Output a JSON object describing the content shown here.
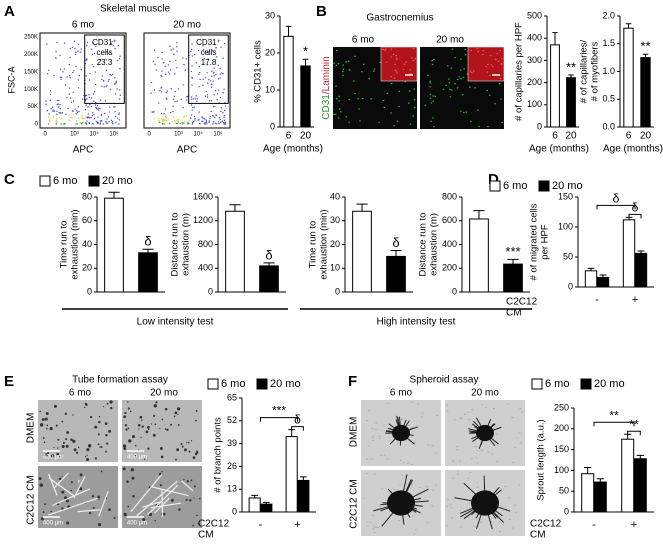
{
  "panels": {
    "A": {
      "letter": "A",
      "title": "Skeletal muscle",
      "ylabel": "FSC-A",
      "xlabel": "APC",
      "yticks": [
        "250K",
        "200K",
        "150K",
        "100K",
        "50K",
        "0"
      ],
      "xticks": [
        "0",
        "10³",
        "10⁴",
        "10⁵"
      ],
      "plots": [
        {
          "label": "6 mo",
          "gate": [
            "CD31⁺",
            "cells",
            "23.3"
          ]
        },
        {
          "label": "20 mo",
          "gate": [
            "CD31⁺",
            "cells",
            "17.8"
          ]
        }
      ]
    },
    "B": {
      "letter": "B",
      "title": "Gastrocnemius",
      "images": [
        "6 mo",
        "20 mo"
      ],
      "stain": [
        "CD31",
        "/Laminin"
      ]
    },
    "C": {
      "letter": "C",
      "legend": [
        "6 mo",
        "20 mo"
      ],
      "groups": [
        "Low intensity test",
        "High intensity test"
      ]
    },
    "D": {
      "letter": "D"
    },
    "E": {
      "letter": "E",
      "title": "Tube formation assay",
      "columns": [
        "6 mo",
        "20 mo"
      ],
      "rows": [
        "DMEM",
        "C2C12 CM"
      ],
      "scale": "400 μm"
    },
    "F": {
      "letter": "F",
      "title": "Spheroid assay",
      "columns": [
        "6 mo",
        "20 mo"
      ],
      "rows": [
        "DMEM",
        "C2C12 CM"
      ]
    }
  },
  "chart_data": [
    {
      "type": "bar",
      "ylabel": [
        "% CD31+ cells"
      ],
      "xlabel": "Age (months)",
      "categories": [
        "6",
        "20"
      ],
      "values": [
        24.5,
        16.5
      ],
      "errors": [
        2.7,
        1.8
      ],
      "colors": [
        "#ffffff",
        "#000000"
      ],
      "ylim": [
        0,
        30
      ],
      "yticks": [
        0,
        10,
        20,
        30
      ],
      "annotations": [
        "*"
      ]
    },
    {
      "type": "bar",
      "ylabel": [
        "# of capillaries per HPF"
      ],
      "xlabel": "Age (months)",
      "categories": [
        "6",
        "20"
      ],
      "values": [
        370,
        222
      ],
      "errors": [
        55,
        12
      ],
      "colors": [
        "#ffffff",
        "#000000"
      ],
      "ylim": [
        0,
        500
      ],
      "yticks": [
        0,
        100,
        200,
        300,
        400,
        500
      ],
      "annotations": [
        "**"
      ]
    },
    {
      "type": "bar",
      "ylabel": [
        "# of capillaries/",
        "# of myofibers"
      ],
      "xlabel": "Age (months)",
      "categories": [
        "6",
        "20"
      ],
      "values": [
        1.78,
        1.25
      ],
      "errors": [
        0.08,
        0.06
      ],
      "colors": [
        "#ffffff",
        "#000000"
      ],
      "ylim": [
        0,
        2
      ],
      "yticks": [
        {
          "value": 0,
          "label": "0.0"
        },
        {
          "value": 0.5,
          "label": "0.5"
        },
        {
          "value": 1,
          "label": "1.0"
        },
        {
          "value": 1.5,
          "label": "1.5"
        },
        {
          "value": 2,
          "label": "2.0"
        }
      ],
      "annotations": [
        "**"
      ]
    },
    {
      "type": "bar",
      "ylabel": [
        "Time run to",
        "exhaustion (min)"
      ],
      "values": [
        79,
        33
      ],
      "errors": [
        5,
        3
      ],
      "colors": [
        "#ffffff",
        "#000000"
      ],
      "ylim": [
        0,
        80
      ],
      "yticks": [
        0,
        20,
        40,
        60,
        80
      ],
      "annotations": [
        "δ"
      ]
    },
    {
      "type": "bar",
      "ylabel": [
        "Distance run to",
        "exhaustion (m)"
      ],
      "values": [
        1360,
        440
      ],
      "errors": [
        110,
        50
      ],
      "colors": [
        "#ffffff",
        "#000000"
      ],
      "ylim": [
        0,
        1600
      ],
      "yticks": [
        0,
        400,
        800,
        1200,
        1600
      ],
      "annotations": [
        "δ"
      ]
    },
    {
      "type": "bar",
      "ylabel": [
        "Time run to",
        "exhaustion (min)"
      ],
      "values": [
        34,
        15
      ],
      "errors": [
        3,
        2.5
      ],
      "colors": [
        "#ffffff",
        "#000000"
      ],
      "ylim": [
        0,
        40
      ],
      "yticks": [
        0,
        10,
        20,
        30,
        40
      ],
      "annotations": [
        "δ"
      ]
    },
    {
      "type": "bar",
      "ylabel": [
        "Distance run to",
        "exhaustion (m)"
      ],
      "values": [
        615,
        235
      ],
      "errors": [
        70,
        40
      ],
      "colors": [
        "#ffffff",
        "#000000"
      ],
      "ylim": [
        0,
        800
      ],
      "yticks": [
        0,
        200,
        400,
        600,
        800
      ],
      "annotations": [
        "***"
      ]
    },
    {
      "type": "grouped_bar",
      "ylabel": [
        "# of migrated cells",
        "per HPF"
      ],
      "xlabel": [
        "C2C12",
        "CM"
      ],
      "categories": [
        "-",
        "+"
      ],
      "series": [
        {
          "name": "6 mo",
          "color": "#ffffff",
          "values": [
            27,
            112
          ],
          "errors": [
            4,
            4
          ]
        },
        {
          "name": "20 mo",
          "color": "#000000",
          "values": [
            16,
            56
          ],
          "errors": [
            4,
            4
          ]
        }
      ],
      "ylim": [
        0,
        150
      ],
      "yticks": [
        0,
        50,
        100,
        150
      ],
      "annotations": [
        "δ",
        "δ"
      ]
    },
    {
      "type": "grouped_bar",
      "ylabel": [
        "# of branch points"
      ],
      "xlabel": [
        "C2C12",
        "CM"
      ],
      "categories": [
        "-",
        "+"
      ],
      "series": [
        {
          "name": "6 mo",
          "color": "#ffffff",
          "values": [
            8,
            43
          ],
          "errors": [
            1.5,
            4
          ]
        },
        {
          "name": "20 mo",
          "color": "#000000",
          "values": [
            4.5,
            18
          ],
          "errors": [
            1,
            2
          ]
        }
      ],
      "ylim": [
        0,
        65
      ],
      "yticks": [
        0,
        13,
        26,
        39,
        52,
        65
      ],
      "annotations": [
        "***",
        "δ"
      ]
    },
    {
      "type": "grouped_bar",
      "ylabel": [
        "Sprout length (a.u.)"
      ],
      "xlabel": [
        "C2C12",
        "CM"
      ],
      "categories": [
        "-",
        "+"
      ],
      "series": [
        {
          "name": "6 mo",
          "color": "#ffffff",
          "values": [
            92,
            175
          ],
          "errors": [
            15,
            12
          ]
        },
        {
          "name": "20 mo",
          "color": "#000000",
          "values": [
            72,
            128
          ],
          "errors": [
            8,
            8
          ]
        }
      ],
      "ylim": [
        0,
        250
      ],
      "yticks": [
        0,
        50,
        100,
        150,
        200,
        250
      ],
      "annotations": [
        "**",
        "**"
      ]
    }
  ]
}
